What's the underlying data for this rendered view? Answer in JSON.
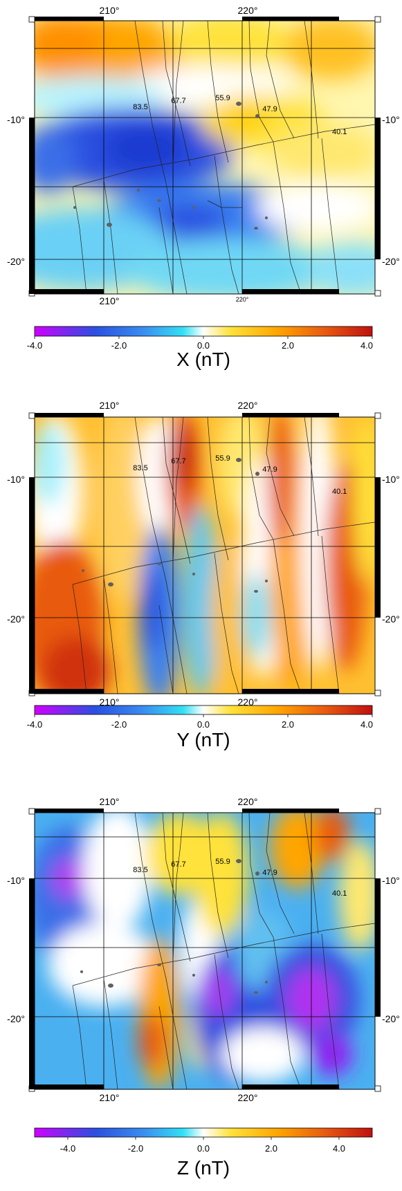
{
  "map": {
    "lon_labels": [
      "210°",
      "220°"
    ],
    "lon_labels_bottom": [
      "210°",
      "220°"
    ],
    "lat_labels": [
      "-10°",
      "-20°"
    ],
    "age_labels": [
      "83.5",
      "67.7",
      "55.9",
      "47.9",
      "40.1"
    ]
  },
  "panels": [
    {
      "id": "x",
      "title": "X (nT)",
      "colorbar_ticks": [
        "-4.0",
        "-2.0",
        "0.0",
        "2.0",
        "4.0"
      ]
    },
    {
      "id": "y",
      "title": "Y (nT)",
      "colorbar_ticks": [
        "-4.0",
        "-2.0",
        "0.0",
        "2.0",
        "4.0"
      ]
    },
    {
      "id": "z",
      "title": "Z (nT)",
      "colorbar_ticks": [
        "-4.0",
        "-2.0",
        "0.0",
        "2.0",
        "4.0"
      ]
    }
  ],
  "colorscale": {
    "range": [
      -4.0,
      4.0
    ],
    "colors": [
      "#d000ff",
      "#2a50e0",
      "#3a8cf0",
      "#32e0f5",
      "#ffffff",
      "#ffe23a",
      "#ffa500",
      "#e85a10",
      "#c01010"
    ]
  }
}
